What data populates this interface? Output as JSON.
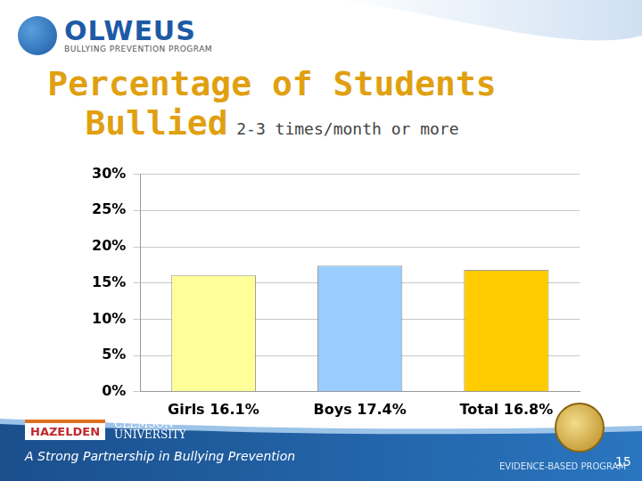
{
  "chart_data": {
    "type": "bar",
    "title": "Percentage of Students Bullied",
    "subtitle": "2-3 times/month or more",
    "categories": [
      "Girls 16.1%",
      "Boys 17.4%",
      "Total 16.8%"
    ],
    "values": [
      16.1,
      17.4,
      16.8
    ],
    "colors": [
      "#ffff99",
      "#99ccff",
      "#ffcc00"
    ],
    "ylim": [
      0,
      30
    ],
    "yticks": [
      {
        "value": 0,
        "label": "0%"
      },
      {
        "value": 5,
        "label": "5%"
      },
      {
        "value": 10,
        "label": "10%"
      },
      {
        "value": 15,
        "label": "15%"
      },
      {
        "value": 20,
        "label": "20%"
      },
      {
        "value": 25,
        "label": "25%"
      },
      {
        "value": 30,
        "label": "30%"
      }
    ],
    "grid": true
  },
  "slide": {
    "logo": "OLWEUS",
    "logo_subtitle": "BULLYING PREVENTION PROGRAM",
    "partners": [
      "HAZELDEN",
      "CLEMSON UNIVERSITY"
    ],
    "tagline": "A Strong Partnership in Bullying Prevention",
    "badge": "EVIDENCE-BASED PROGRAM",
    "page_number": 15
  }
}
